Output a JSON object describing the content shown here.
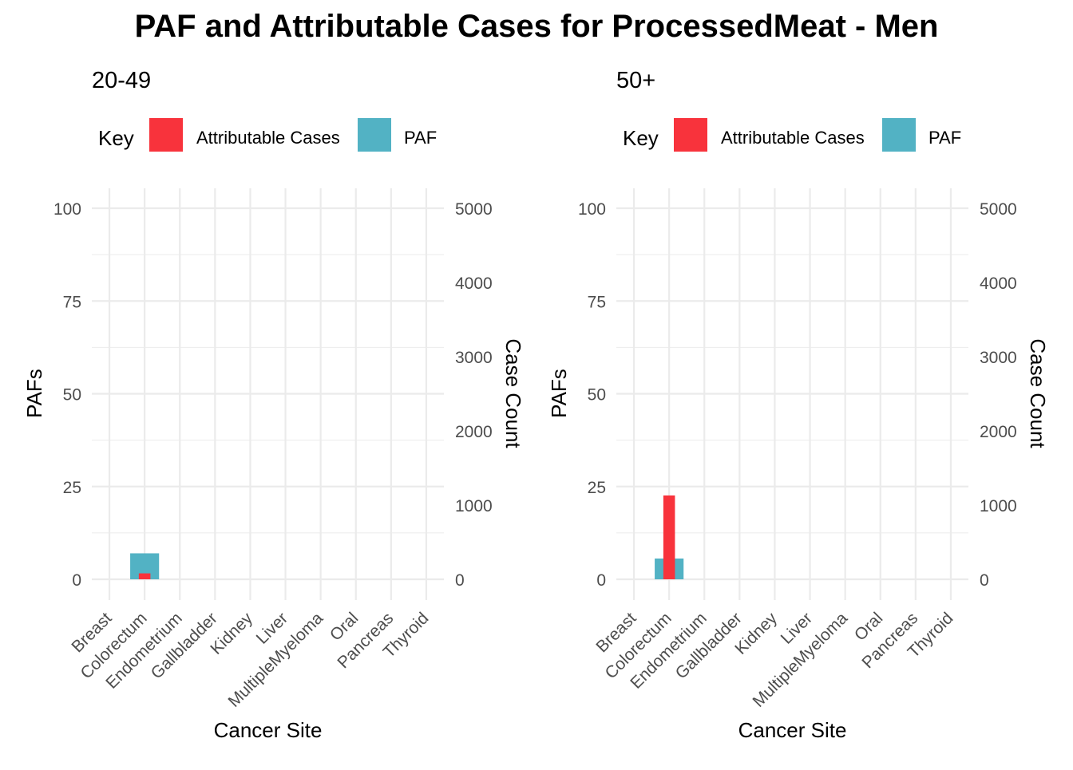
{
  "title": "PAF and Attributable Cases for ProcessedMeat - Men",
  "legend": {
    "title": "Key",
    "items": [
      {
        "label": "Attributable Cases",
        "color": "#F8333C"
      },
      {
        "label": "PAF",
        "color": "#52B2C4"
      }
    ]
  },
  "chart_data": [
    {
      "type": "bar",
      "title": "20-49",
      "xlabel": "Cancer Site",
      "ylabel": "PAFs",
      "y2label": "Case Count",
      "categories": [
        "Breast",
        "Colorectum",
        "Endometrium",
        "Gallbladder",
        "Kidney",
        "Liver",
        "MultipleMyeloma",
        "Oral",
        "Pancreas",
        "Thyroid"
      ],
      "ylim": [
        0,
        100
      ],
      "y2lim": [
        0,
        5000
      ],
      "yticks": [
        0,
        25,
        50,
        75,
        100
      ],
      "y2ticks": [
        0,
        1000,
        2000,
        3000,
        4000,
        5000
      ],
      "grid": true,
      "legend_position": "top",
      "series": [
        {
          "name": "PAF",
          "axis": "left",
          "color": "#52B2C4",
          "values": [
            0,
            7,
            0,
            0,
            0,
            0,
            0,
            0,
            0,
            0
          ]
        },
        {
          "name": "Attributable Cases",
          "axis": "right",
          "color": "#F8333C",
          "values": [
            0,
            80,
            0,
            0,
            0,
            0,
            0,
            0,
            0,
            0
          ]
        }
      ]
    },
    {
      "type": "bar",
      "title": "50+",
      "xlabel": "Cancer Site",
      "ylabel": "PAFs",
      "y2label": "Case Count",
      "categories": [
        "Breast",
        "Colorectum",
        "Endometrium",
        "Gallbladder",
        "Kidney",
        "Liver",
        "MultipleMyeloma",
        "Oral",
        "Pancreas",
        "Thyroid"
      ],
      "ylim": [
        0,
        100
      ],
      "y2lim": [
        0,
        5000
      ],
      "yticks": [
        0,
        25,
        50,
        75,
        100
      ],
      "y2ticks": [
        0,
        1000,
        2000,
        3000,
        4000,
        5000
      ],
      "grid": true,
      "legend_position": "top",
      "series": [
        {
          "name": "PAF",
          "axis": "left",
          "color": "#52B2C4",
          "values": [
            0,
            5.6,
            0,
            0,
            0,
            0,
            0,
            0,
            0,
            0
          ]
        },
        {
          "name": "Attributable Cases",
          "axis": "right",
          "color": "#F8333C",
          "values": [
            0,
            1130,
            0,
            0,
            0,
            0,
            0,
            0,
            0,
            0
          ]
        }
      ]
    }
  ]
}
